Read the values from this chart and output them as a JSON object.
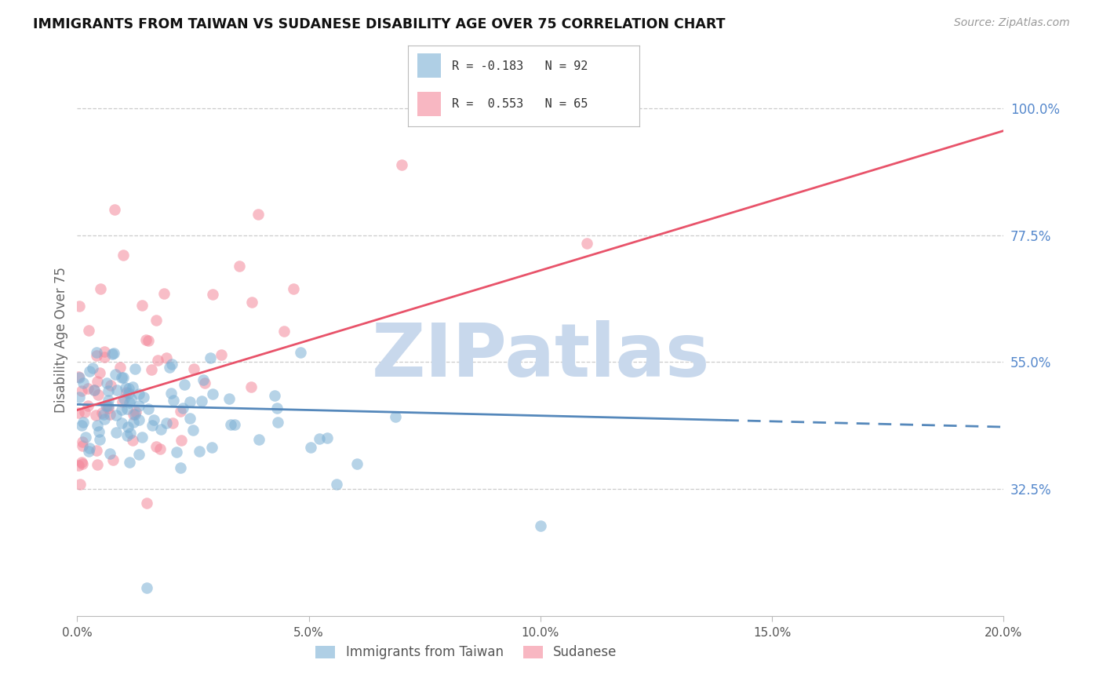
{
  "title": "IMMIGRANTS FROM TAIWAN VS SUDANESE DISABILITY AGE OVER 75 CORRELATION CHART",
  "source": "Source: ZipAtlas.com",
  "ylabel": "Disability Age Over 75",
  "right_ytick_labels": [
    "32.5%",
    "55.0%",
    "77.5%",
    "100.0%"
  ],
  "right_ytick_vals": [
    32.5,
    55.0,
    77.5,
    100.0
  ],
  "legend1_label": "Immigrants from Taiwan",
  "legend2_label": "Sudanese",
  "blue_color": "#7bafd4",
  "pink_color": "#f4879a",
  "blue_line_color": "#5588bb",
  "pink_line_color": "#e8536a",
  "xmin": 0.0,
  "xmax": 20.0,
  "ymin": 10.0,
  "ymax": 108.0,
  "blue_solid_end": 14.0,
  "blue_line_x0": 0.0,
  "blue_line_y0": 47.5,
  "blue_line_x1": 20.0,
  "blue_line_y1": 43.5,
  "pink_line_x0": 0.0,
  "pink_line_y0": 46.5,
  "pink_line_x1": 20.0,
  "pink_line_y1": 96.0,
  "watermark_text": "ZIPatlas",
  "watermark_color": "#c8d8ec",
  "xtick_positions": [
    0,
    5,
    10,
    15,
    20
  ],
  "xtick_labels": [
    "0.0%",
    "5.0%",
    "10.0%",
    "15.0%",
    "20.0%"
  ]
}
